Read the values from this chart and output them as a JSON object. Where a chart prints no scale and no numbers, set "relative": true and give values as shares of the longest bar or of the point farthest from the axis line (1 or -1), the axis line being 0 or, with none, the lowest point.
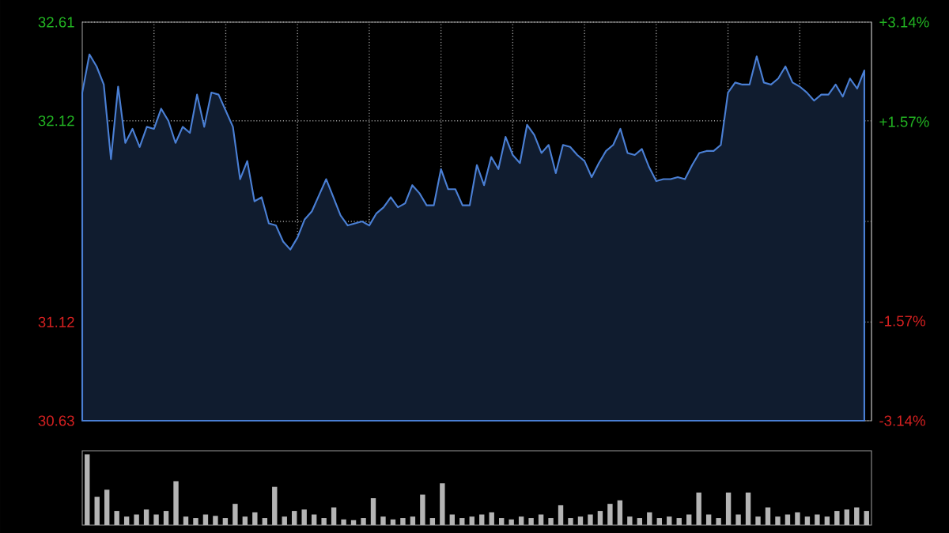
{
  "chart_data": [
    {
      "type": "area",
      "ylim": [
        30.63,
        32.61
      ],
      "y2lim": [
        -3.14,
        3.14
      ],
      "grid": true,
      "tick_labels": "y",
      "categories": [
        null,
        null,
        null,
        null,
        null,
        null,
        null,
        null,
        null,
        null,
        null,
        null,
        null,
        null,
        null,
        null,
        null,
        null,
        null,
        null,
        null,
        null,
        null,
        null,
        null,
        null,
        null,
        null,
        null,
        null,
        null,
        null,
        null,
        null,
        null,
        null,
        null,
        null,
        null,
        null,
        null,
        null,
        null,
        null,
        null,
        null,
        null,
        null,
        null,
        null,
        null,
        null,
        null,
        null,
        null,
        null,
        null,
        null,
        null,
        null,
        null,
        null,
        null,
        null,
        null,
        null,
        null,
        null,
        null,
        null,
        null,
        null,
        null,
        null,
        null,
        null,
        null,
        null,
        null,
        null,
        null,
        null,
        null,
        null,
        null,
        null,
        null,
        null,
        null,
        null,
        null,
        null,
        null,
        null,
        null,
        null,
        null,
        null,
        null,
        null,
        null,
        null,
        null,
        null,
        null,
        null,
        null,
        null,
        null,
        null
      ],
      "yticks": [
        32.61,
        32.12,
        {
          "value": 31.62,
          "label": null
        },
        31.12,
        30.63
      ],
      "y2ticks": [
        {
          "value": 3.14,
          "label": "+3.14%"
        },
        {
          "value": 1.57,
          "label": "+1.57%"
        },
        {
          "value": 0,
          "label": null
        },
        {
          "value": -1.57,
          "label": "-1.57%"
        },
        {
          "value": -3.14,
          "label": "-3.14%"
        }
      ],
      "series": [
        {
          "color": "#4a7fd4",
          "values": [
            32.26,
            32.45,
            32.39,
            32.3,
            31.93,
            32.29,
            32.01,
            32.08,
            31.99,
            32.09,
            32.08,
            32.18,
            32.12,
            32.01,
            32.09,
            32.06,
            32.25,
            32.09,
            32.26,
            32.25,
            32.17,
            32.09,
            31.83,
            31.92,
            31.72,
            31.74,
            31.61,
            31.6,
            31.52,
            31.48,
            31.54,
            31.63,
            31.67,
            31.75,
            31.83,
            31.74,
            31.65,
            31.6,
            31.61,
            31.62,
            31.6,
            31.66,
            31.69,
            31.74,
            31.69,
            31.71,
            31.8,
            31.76,
            31.7,
            31.7,
            31.88,
            31.78,
            31.78,
            31.7,
            31.7,
            31.9,
            31.8,
            31.94,
            31.88,
            32.04,
            31.95,
            31.91,
            32.1,
            32.05,
            31.96,
            32.0,
            31.86,
            32.0,
            31.99,
            31.95,
            31.92,
            31.84,
            31.91,
            31.97,
            32.0,
            32.08,
            31.96,
            31.95,
            31.98,
            31.89,
            31.82,
            31.83,
            31.83,
            31.84,
            31.83,
            31.9,
            31.96,
            31.97,
            31.97,
            32.0,
            32.26,
            32.31,
            32.3,
            32.3,
            32.44,
            32.31,
            32.3,
            32.33,
            32.39,
            32.31,
            32.29,
            32.26,
            32.22,
            32.25,
            32.25,
            32.3,
            32.24,
            32.33,
            32.28,
            32.37
          ]
        }
      ]
    },
    {
      "type": "bar",
      "relative": true,
      "color": "#b4b4b4",
      "categories": [
        null,
        null,
        null,
        null,
        null,
        null,
        null,
        null,
        null,
        null,
        null,
        null,
        null,
        null,
        null,
        null,
        null,
        null,
        null,
        null,
        null,
        null,
        null,
        null,
        null,
        null,
        null,
        null,
        null,
        null,
        null,
        null,
        null,
        null,
        null,
        null,
        null,
        null,
        null,
        null,
        null,
        null,
        null,
        null,
        null,
        null,
        null,
        null,
        null,
        null,
        null,
        null,
        null,
        null,
        null,
        null,
        null,
        null,
        null,
        null,
        null,
        null,
        null,
        null,
        null,
        null,
        null,
        null,
        null,
        null,
        null,
        null,
        null,
        null,
        null,
        null,
        null,
        null,
        null,
        null
      ],
      "values": [
        1.0,
        0.4,
        0.5,
        0.2,
        0.12,
        0.15,
        0.22,
        0.15,
        0.2,
        0.62,
        0.12,
        0.1,
        0.15,
        0.13,
        0.1,
        0.3,
        0.12,
        0.18,
        0.1,
        0.54,
        0.12,
        0.2,
        0.22,
        0.15,
        0.1,
        0.25,
        0.08,
        0.07,
        0.1,
        0.38,
        0.12,
        0.08,
        0.1,
        0.12,
        0.43,
        0.1,
        0.59,
        0.15,
        0.1,
        0.12,
        0.15,
        0.18,
        0.1,
        0.08,
        0.12,
        0.1,
        0.15,
        0.1,
        0.28,
        0.1,
        0.12,
        0.15,
        0.2,
        0.3,
        0.35,
        0.12,
        0.1,
        0.18,
        0.1,
        0.12,
        0.1,
        0.15,
        0.46,
        0.15,
        0.1,
        0.46,
        0.15,
        0.46,
        0.12,
        0.25,
        0.12,
        0.15,
        0.18,
        0.12,
        0.15,
        0.12,
        0.2,
        0.22,
        0.25,
        0.2
      ]
    }
  ]
}
